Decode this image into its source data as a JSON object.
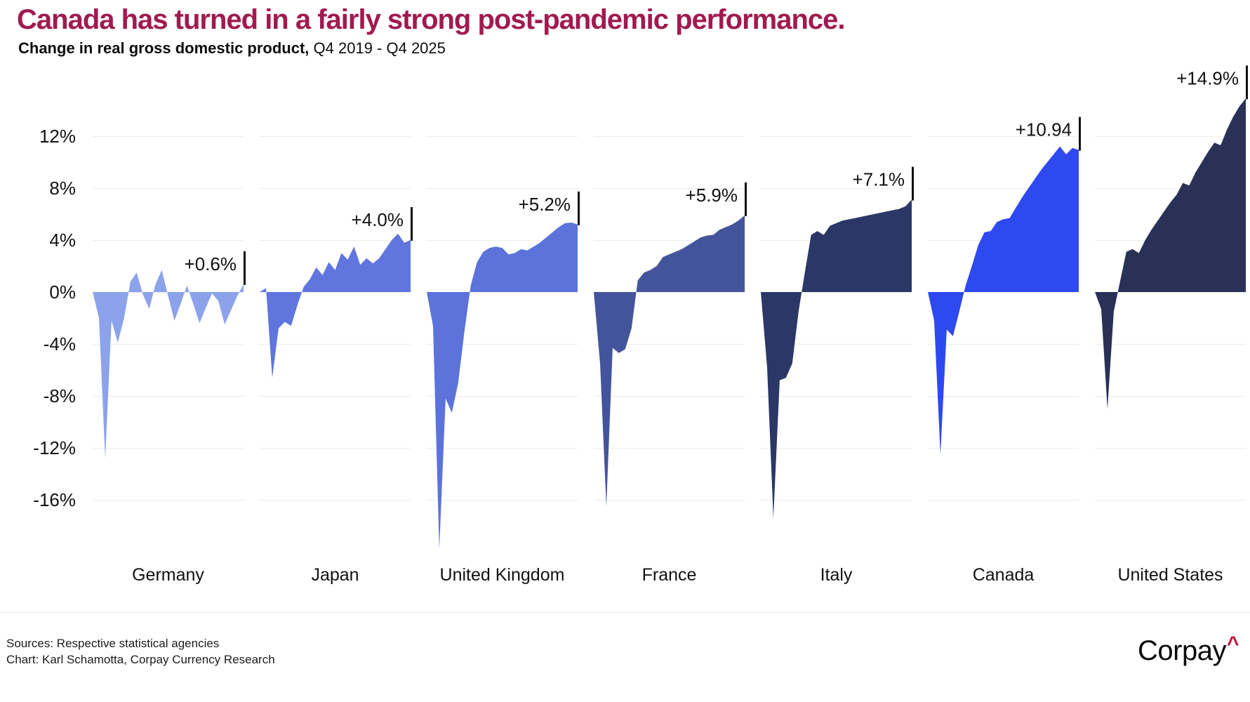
{
  "header": {
    "title": "Canada has turned in a fairly strong post-pandemic performance.",
    "subtitle_main": "Change in real gross domestic product,",
    "subtitle_period": " Q4 2019 - Q4 2025"
  },
  "colors": {
    "title_color": "#A01A4F",
    "text": "#111111",
    "grid": "#ECECEC",
    "divider": "#E4E4E4",
    "tick_mark": "#111111",
    "logo_caret": "#C8103E"
  },
  "chart_data": {
    "type": "area",
    "title": "Canada has turned in a fairly strong post-pandemic performance.",
    "subtitle": "Change in real gross domestic product, Q4 2019 - Q4 2025",
    "unit": "%",
    "baseline_period": "Q4 2019",
    "end_period": "Q4 2025",
    "points_per_series": 25,
    "grid": true,
    "legend": "none",
    "y_axis": {
      "range": [
        -20,
        15
      ],
      "ticks": [
        {
          "label": "12%",
          "value": 12
        },
        {
          "label": "8%",
          "value": 8
        },
        {
          "label": "4%",
          "value": 4
        },
        {
          "label": "0%",
          "value": 0
        },
        {
          "label": "-4%",
          "value": -4
        },
        {
          "label": "-8%",
          "value": -8
        },
        {
          "label": "-12%",
          "value": -12
        },
        {
          "label": "-16%",
          "value": -16
        }
      ]
    },
    "panels": [
      {
        "country": "Germany",
        "color": "#8CA2EB",
        "end_label": "+0.6%",
        "end_value": 0.6,
        "min_value": -12.8,
        "values": [
          0,
          -2.0,
          -12.8,
          -2.2,
          -3.9,
          -2.0,
          0.8,
          1.5,
          -0.2,
          -1.3,
          0.6,
          1.7,
          -0.3,
          -2.2,
          -0.9,
          0.5,
          -0.9,
          -2.4,
          -1.2,
          -0.1,
          -0.7,
          -2.5,
          -1.4,
          -0.3,
          0.6
        ]
      },
      {
        "country": "Japan",
        "color": "#6076DE",
        "end_label": "+4.0%",
        "end_value": 4.0,
        "min_value": -6.6,
        "values": [
          0,
          0.3,
          -6.6,
          -2.8,
          -2.3,
          -2.6,
          -1.0,
          0.4,
          1.0,
          1.9,
          1.3,
          2.3,
          1.7,
          3.0,
          2.5,
          3.5,
          2.1,
          2.6,
          2.2,
          2.6,
          3.3,
          4.0,
          4.5,
          3.8,
          4.0
        ]
      },
      {
        "country": "United Kingdom",
        "color": "#5B73DA",
        "end_label": "+5.2%",
        "end_value": 5.2,
        "min_value": -19.8,
        "values": [
          0,
          -2.6,
          -19.8,
          -8.2,
          -9.3,
          -7.0,
          -3.0,
          0.5,
          2.3,
          3.1,
          3.4,
          3.5,
          3.4,
          2.9,
          3.0,
          3.3,
          3.2,
          3.5,
          3.8,
          4.2,
          4.6,
          5.0,
          5.3,
          5.35,
          5.2
        ]
      },
      {
        "country": "France",
        "color": "#44549C",
        "end_label": "+5.9%",
        "end_value": 5.9,
        "min_value": -16.5,
        "values": [
          0,
          -5.5,
          -16.5,
          -4.3,
          -4.7,
          -4.4,
          -2.8,
          0.9,
          1.5,
          1.7,
          2.0,
          2.7,
          2.9,
          3.1,
          3.3,
          3.6,
          3.9,
          4.2,
          4.35,
          4.4,
          4.8,
          5.0,
          5.2,
          5.5,
          5.9
        ]
      },
      {
        "country": "Italy",
        "color": "#2B3766",
        "end_label": "+7.1%",
        "end_value": 7.1,
        "min_value": -17.4,
        "values": [
          0,
          -5.8,
          -17.4,
          -6.8,
          -6.6,
          -5.5,
          -1.5,
          1.5,
          4.4,
          4.7,
          4.4,
          5.1,
          5.3,
          5.5,
          5.6,
          5.7,
          5.8,
          5.9,
          6.0,
          6.1,
          6.2,
          6.3,
          6.4,
          6.6,
          7.1
        ]
      },
      {
        "country": "Canada",
        "color": "#2E49F0",
        "end_label": "+10.94",
        "end_value": 10.94,
        "min_value": -12.5,
        "values": [
          0,
          -2.2,
          -12.5,
          -2.9,
          -3.4,
          -1.5,
          0.5,
          2.0,
          3.6,
          4.6,
          4.7,
          5.4,
          5.6,
          5.7,
          6.5,
          7.3,
          8.0,
          8.7,
          9.4,
          10.0,
          10.6,
          11.2,
          10.6,
          11.1,
          10.94
        ]
      },
      {
        "country": "United States",
        "color": "#293157",
        "end_label": "+14.9%",
        "end_value": 14.9,
        "min_value": -9.0,
        "values": [
          0,
          -1.3,
          -9.0,
          -1.5,
          0.8,
          3.1,
          3.3,
          3.0,
          4.0,
          4.8,
          5.5,
          6.2,
          6.9,
          7.5,
          8.4,
          8.2,
          9.2,
          10.0,
          10.8,
          11.5,
          11.3,
          12.5,
          13.5,
          14.3,
          14.9
        ]
      }
    ]
  },
  "footer": {
    "sources": "Sources: Respective statistical agencies",
    "credit": "Chart: Karl Schamotta, Corpay Currency Research",
    "logo": {
      "text": "Corpay",
      "caret": "^"
    }
  }
}
